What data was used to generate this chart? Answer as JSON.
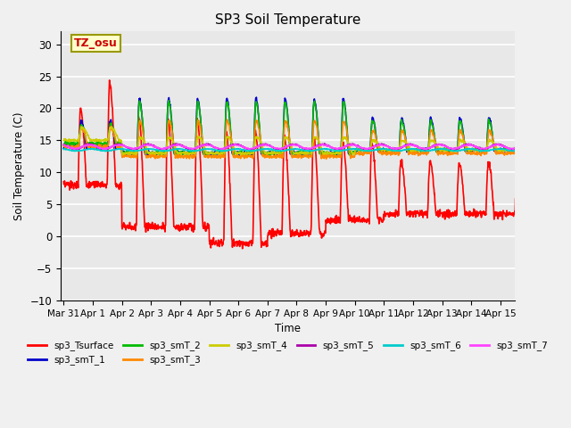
{
  "title": "SP3 Soil Temperature",
  "ylabel": "Soil Temperature (C)",
  "xlabel": "Time",
  "xlim_days": [
    -0.1,
    15.5
  ],
  "ylim": [
    -10,
    32
  ],
  "yticks": [
    -10,
    -5,
    0,
    5,
    10,
    15,
    20,
    25,
    30
  ],
  "xtick_labels": [
    "Mar 31",
    "Apr 1",
    "Apr 2",
    "Apr 3",
    "Apr 4",
    "Apr 5",
    "Apr 6",
    "Apr 7",
    "Apr 8",
    "Apr 9",
    "Apr 10",
    "Apr 11",
    "Apr 12",
    "Apr 13",
    "Apr 14",
    "Apr 15"
  ],
  "xtick_positions": [
    0,
    1,
    2,
    3,
    4,
    5,
    6,
    7,
    8,
    9,
    10,
    11,
    12,
    13,
    14,
    15
  ],
  "annotation_text": "TZ_osu",
  "annotation_color": "#cc0000",
  "annotation_bg": "#ffffcc",
  "annotation_border": "#999900",
  "plot_bg": "#e8e8e8",
  "fig_bg": "#f0f0f0",
  "grid_color": "#ffffff",
  "series_colors": {
    "sp3_Tsurface": "#ff0000",
    "sp3_smT_1": "#0000cc",
    "sp3_smT_2": "#00bb00",
    "sp3_smT_3": "#ff8800",
    "sp3_smT_4": "#cccc00",
    "sp3_smT_5": "#aa00aa",
    "sp3_smT_6": "#00cccc",
    "sp3_smT_7": "#ff44ff"
  },
  "lw": 1.2
}
